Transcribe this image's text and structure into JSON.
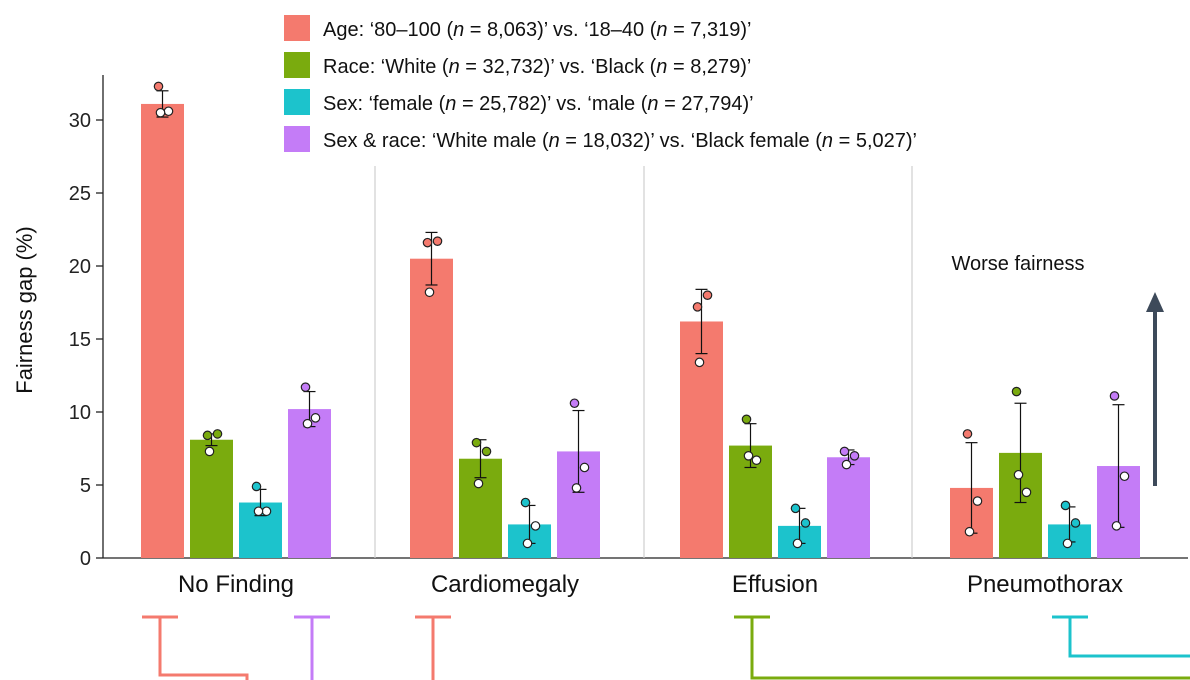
{
  "chart_data": {
    "type": "bar",
    "ylabel": "Fairness gap (%)",
    "ylim": [
      0,
      32
    ],
    "yticks": [
      0,
      5,
      10,
      15,
      20,
      25,
      30
    ],
    "grid": false,
    "legend_position": "top",
    "categories": [
      "No Finding",
      "Cardiomegaly",
      "Effusion",
      "Pneumothorax"
    ],
    "series": [
      {
        "legend_parts": [
          {
            "t": "Age: ‘80–100 (",
            "i": false
          },
          {
            "t": "n",
            "i": true
          },
          {
            "t": " = 8,063)’ vs. ‘18–40 (",
            "i": false
          },
          {
            "t": "n",
            "i": true
          },
          {
            "t": " = 7,319)’",
            "i": false
          }
        ],
        "color": "#f47a6e",
        "values": [
          31.1,
          20.5,
          16.2,
          4.8
        ],
        "errors": [
          0.9,
          1.8,
          2.2,
          3.1
        ],
        "points": [
          [
            32.3,
            30.6,
            30.5
          ],
          [
            21.6,
            21.7,
            18.2
          ],
          [
            17.2,
            18.0,
            13.4
          ],
          [
            8.5,
            3.9,
            1.8
          ]
        ]
      },
      {
        "legend_parts": [
          {
            "t": "Race: ‘White (",
            "i": false
          },
          {
            "t": "n",
            "i": true
          },
          {
            "t": " = 32,732)’ vs. ‘Black (",
            "i": false
          },
          {
            "t": "n",
            "i": true
          },
          {
            "t": " = 8,279)’",
            "i": false
          }
        ],
        "color": "#7aab0e",
        "values": [
          8.1,
          6.8,
          7.7,
          7.2
        ],
        "errors": [
          0.4,
          1.3,
          1.5,
          3.4
        ],
        "points": [
          [
            8.4,
            8.5,
            7.3
          ],
          [
            7.9,
            7.3,
            5.1
          ],
          [
            9.5,
            6.7,
            7.0
          ],
          [
            11.4,
            4.5,
            5.7
          ]
        ]
      },
      {
        "legend_parts": [
          {
            "t": "Sex: ‘female (",
            "i": false
          },
          {
            "t": "n",
            "i": true
          },
          {
            "t": " = 25,782)’ vs. ‘male (",
            "i": false
          },
          {
            "t": "n",
            "i": true
          },
          {
            "t": " = 27,794)’",
            "i": false
          }
        ],
        "color": "#1cc3cc",
        "values": [
          3.8,
          2.3,
          2.2,
          2.3
        ],
        "errors": [
          0.9,
          1.3,
          1.2,
          1.2
        ],
        "points": [
          [
            4.9,
            3.2,
            3.2
          ],
          [
            3.8,
            2.2,
            1.0
          ],
          [
            3.4,
            2.4,
            1.0
          ],
          [
            3.6,
            2.4,
            1.0
          ]
        ]
      },
      {
        "legend_parts": [
          {
            "t": "Sex & race: ‘White male (",
            "i": false
          },
          {
            "t": "n",
            "i": true
          },
          {
            "t": " = 18,032)’ vs. ‘Black female (",
            "i": false
          },
          {
            "t": "n",
            "i": true
          },
          {
            "t": " = 5,027)’",
            "i": false
          }
        ],
        "color": "#c47cf7",
        "values": [
          10.2,
          7.3,
          6.9,
          6.3
        ],
        "errors": [
          1.2,
          2.8,
          0.5,
          4.2
        ],
        "points": [
          [
            11.7,
            9.6,
            9.2
          ],
          [
            10.6,
            6.2,
            4.8
          ],
          [
            7.3,
            7.0,
            6.4
          ],
          [
            11.1,
            5.6,
            2.2
          ]
        ]
      }
    ],
    "annotation": "Worse fairness",
    "arrow_color": "#3d4a5a"
  }
}
